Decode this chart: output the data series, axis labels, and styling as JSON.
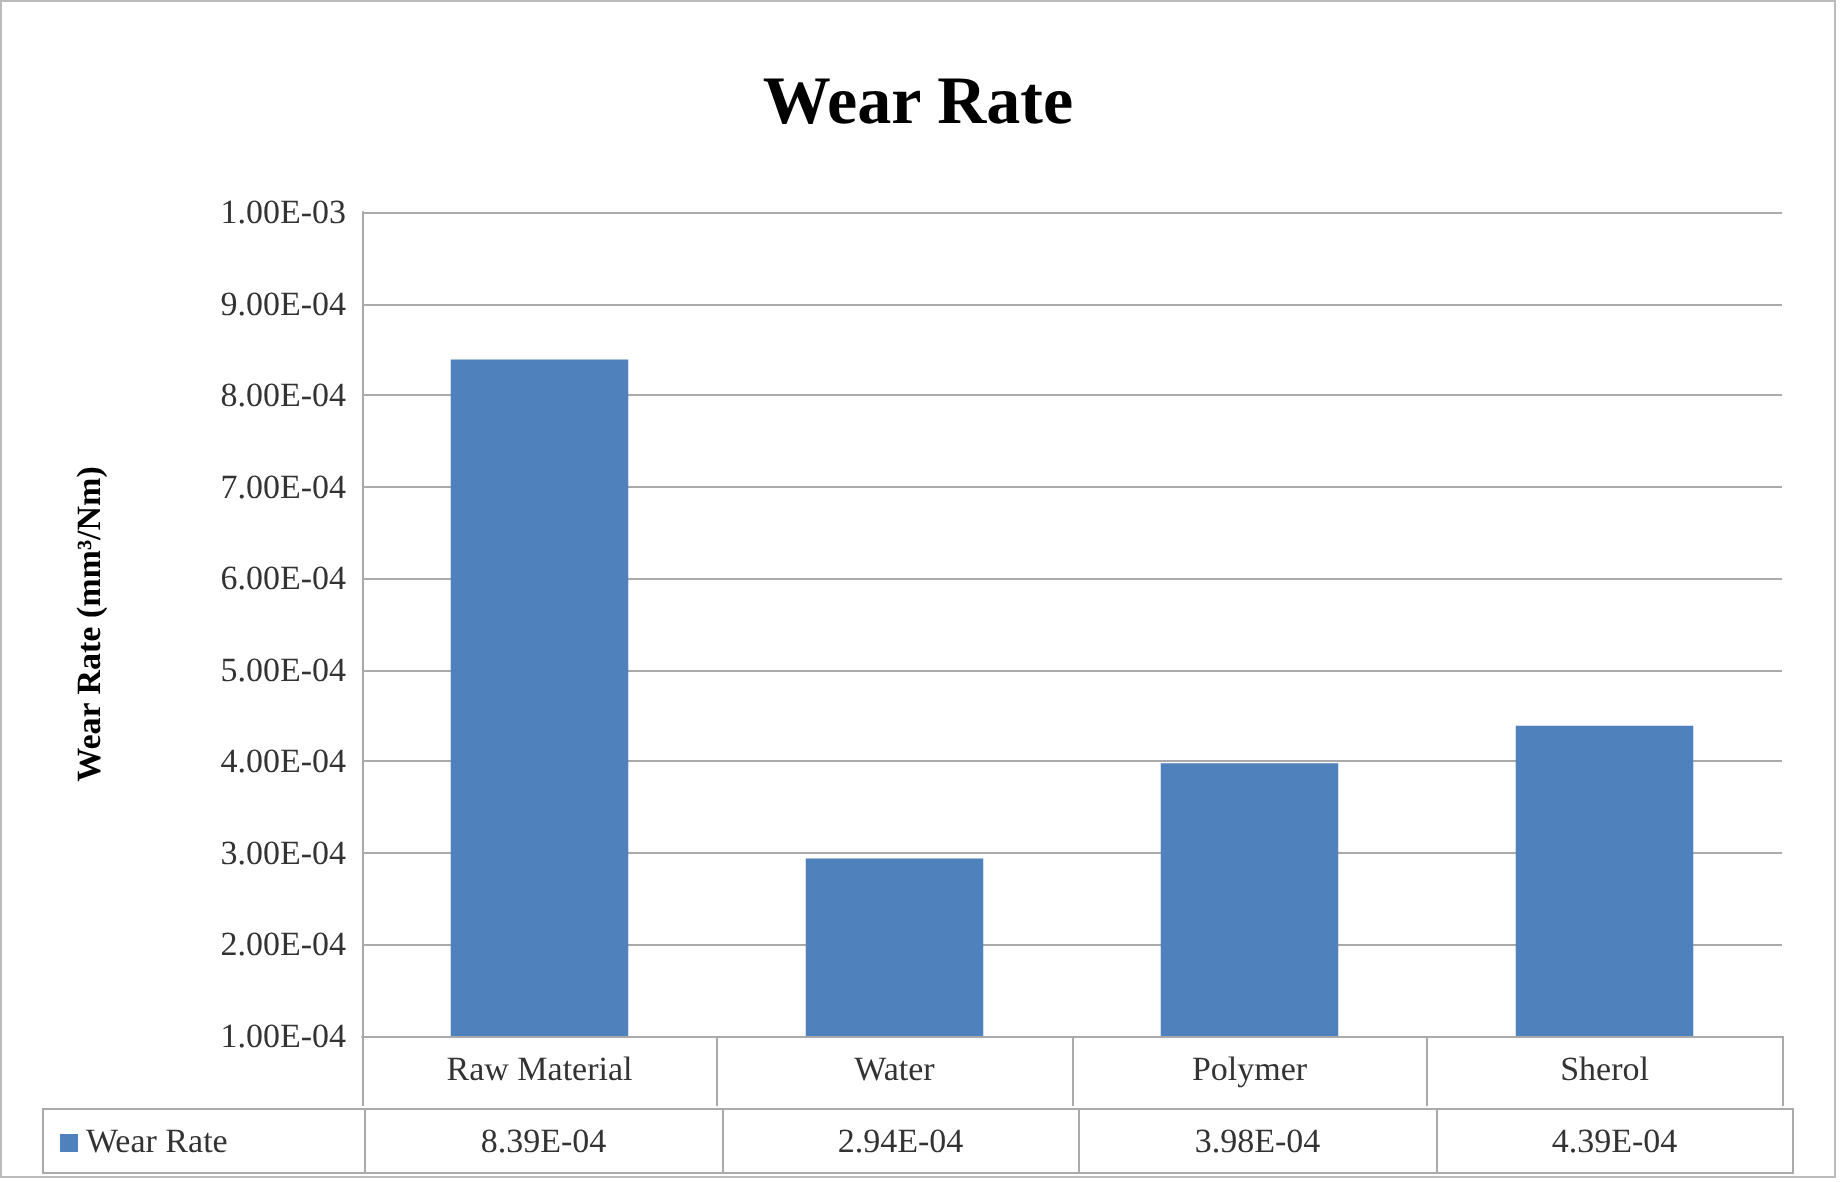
{
  "chart_data": {
    "type": "bar",
    "title": "Wear Rate",
    "ylabel": "Wear Rate (mm³/Nm)",
    "categories": [
      "Raw Material",
      "Water",
      "Polymer",
      "Sherol"
    ],
    "series": [
      {
        "name": "Wear Rate",
        "color": "#4f81bd",
        "values": [
          0.000839,
          0.000294,
          0.000398,
          0.000439
        ],
        "value_labels": [
          "8.39E-04",
          "2.94E-04",
          "3.98E-04",
          "4.39E-04"
        ]
      }
    ],
    "ylim": [
      0.0001,
      0.001
    ],
    "yticks": [
      {
        "value": 0.0001,
        "label": "1.00E-04"
      },
      {
        "value": 0.0002,
        "label": "2.00E-04"
      },
      {
        "value": 0.0003,
        "label": "3.00E-04"
      },
      {
        "value": 0.0004,
        "label": "4.00E-04"
      },
      {
        "value": 0.0005,
        "label": "5.00E-04"
      },
      {
        "value": 0.0006,
        "label": "6.00E-04"
      },
      {
        "value": 0.0007,
        "label": "7.00E-04"
      },
      {
        "value": 0.0008,
        "label": "8.00E-04"
      },
      {
        "value": 0.0009,
        "label": "9.00E-04"
      },
      {
        "value": 0.001,
        "label": "1.00E-03"
      }
    ],
    "grid": "y",
    "legend": "bottom"
  }
}
